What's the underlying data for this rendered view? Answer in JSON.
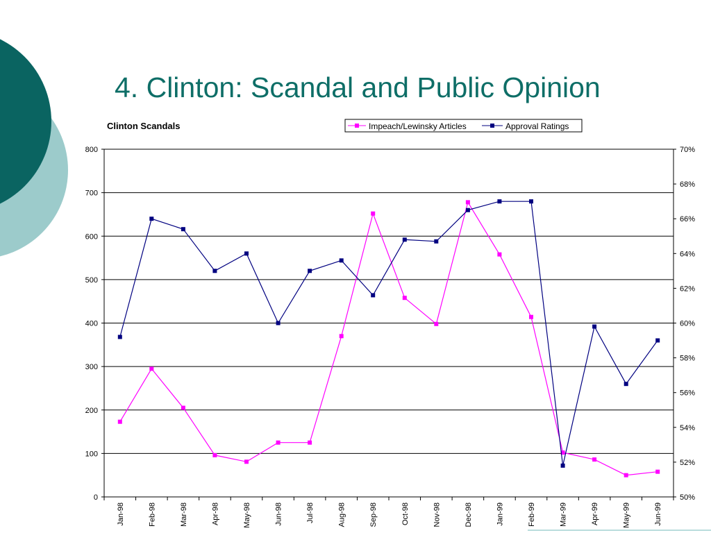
{
  "slide": {
    "title": "4. Clinton: Scandal and Public Opinion",
    "accent_dark": "#0a6461",
    "accent_light": "#9ccbcb"
  },
  "chart_data": {
    "type": "line",
    "title": "Clinton Scandals",
    "categories": [
      "Jan-98",
      "Feb-98",
      "Mar-98",
      "Apr-98",
      "May-98",
      "Jun-98",
      "Jul-98",
      "Aug-98",
      "Sep-98",
      "Oct-98",
      "Nov-98",
      "Dec-98",
      "Jan-99",
      "Feb-99",
      "Mar-99",
      "Apr-99",
      "May-99",
      "Jun-99"
    ],
    "y_left": {
      "min": 0,
      "max": 800,
      "step": 100,
      "ticks": [
        "0",
        "100",
        "200",
        "300",
        "400",
        "500",
        "600",
        "700",
        "800"
      ]
    },
    "y_right": {
      "min": 50,
      "max": 70,
      "step": 2,
      "ticks": [
        "50%",
        "52%",
        "54%",
        "56%",
        "58%",
        "60%",
        "62%",
        "64%",
        "66%",
        "68%",
        "70%"
      ]
    },
    "grid": true,
    "legend_position": "top-right",
    "series": [
      {
        "name": "Impeach/Lewinsky Articles",
        "axis": "left",
        "color": "#ff00ff",
        "values": [
          173,
          295,
          205,
          96,
          81,
          125,
          125,
          370,
          652,
          458,
          398,
          678,
          558,
          414,
          102,
          86,
          50,
          58
        ]
      },
      {
        "name": "Approval Ratings",
        "axis": "right",
        "color": "#000080",
        "values": [
          59.2,
          66.0,
          65.4,
          63.0,
          64.0,
          60.0,
          63.0,
          63.6,
          61.6,
          64.8,
          64.7,
          66.5,
          67.0,
          67.0,
          51.8,
          59.8,
          56.5,
          59.0
        ]
      }
    ]
  }
}
